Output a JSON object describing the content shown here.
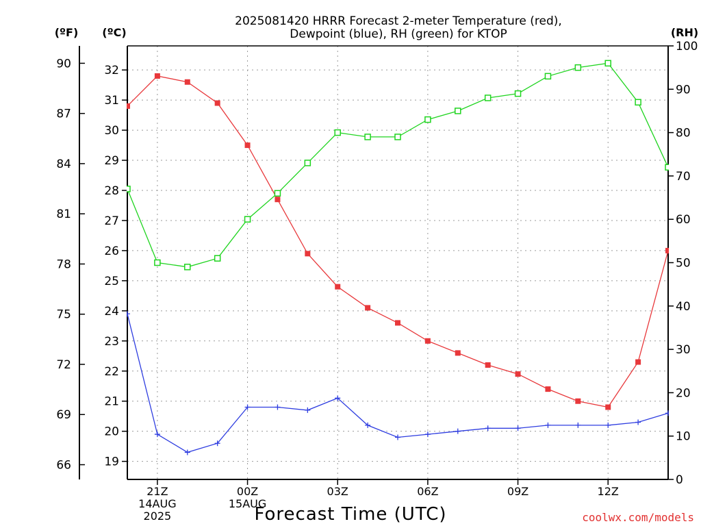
{
  "chart_data": {
    "type": "line",
    "title_line1": "2025081420 HRRR Forecast 2-meter Temperature (red),",
    "title_line2": "Dewpoint (blue), RH (green) for KTOP",
    "left_outer_axis_label": "(ºF)",
    "left_inner_axis_label": "(ºC)",
    "right_axis_label": "(RH)",
    "xlabel": "Forecast Time (UTC)",
    "credit": "coolwx.com/models",
    "grid": true,
    "colors": {
      "temperature": "#e8383b",
      "dewpoint": "#2e3de0",
      "rh": "#1fd41f"
    },
    "x_hours": [
      0,
      1,
      2,
      3,
      4,
      5,
      6,
      7,
      8,
      9,
      10,
      11,
      12,
      13,
      14,
      15,
      16,
      17,
      18
    ],
    "x_ticks": [
      {
        "hour": 1,
        "label": "21Z",
        "sub1": "14AUG",
        "sub2": "2025"
      },
      {
        "hour": 4,
        "label": "00Z",
        "sub1": "15AUG",
        "sub2": ""
      },
      {
        "hour": 7,
        "label": "03Z",
        "sub1": "",
        "sub2": ""
      },
      {
        "hour": 10,
        "label": "06Z",
        "sub1": "",
        "sub2": ""
      },
      {
        "hour": 13,
        "label": "09Z",
        "sub1": "",
        "sub2": ""
      },
      {
        "hour": 16,
        "label": "12Z",
        "sub1": "",
        "sub2": ""
      }
    ],
    "celsius_ylim": [
      18.4,
      32.8
    ],
    "celsius_ticks": [
      19,
      20,
      21,
      22,
      23,
      24,
      25,
      26,
      27,
      28,
      29,
      30,
      31,
      32
    ],
    "fahrenheit_ticks": [
      66,
      69,
      72,
      75,
      78,
      81,
      84,
      87,
      90
    ],
    "rh_ylim": [
      0,
      100
    ],
    "rh_ticks": [
      0,
      10,
      20,
      30,
      40,
      50,
      60,
      70,
      80,
      90,
      100
    ],
    "series": [
      {
        "name": "Temperature",
        "units": "C",
        "values": [
          30.8,
          31.8,
          31.6,
          30.9,
          29.5,
          27.7,
          25.9,
          24.8,
          24.1,
          23.6,
          23.0,
          22.6,
          22.2,
          21.9,
          21.4,
          21.0,
          20.8,
          22.3,
          26.0
        ]
      },
      {
        "name": "Dewpoint",
        "units": "C",
        "values": [
          23.9,
          19.9,
          19.3,
          19.6,
          20.8,
          20.8,
          20.7,
          21.1,
          20.2,
          19.8,
          19.9,
          20.0,
          20.1,
          20.1,
          20.2,
          20.2,
          20.2,
          20.3,
          20.6
        ]
      },
      {
        "name": "RH",
        "units": "%",
        "values": [
          67,
          50,
          49,
          51,
          60,
          66,
          73,
          80,
          79,
          79,
          83,
          85,
          88,
          89,
          93,
          95,
          96,
          87,
          72
        ]
      }
    ]
  }
}
